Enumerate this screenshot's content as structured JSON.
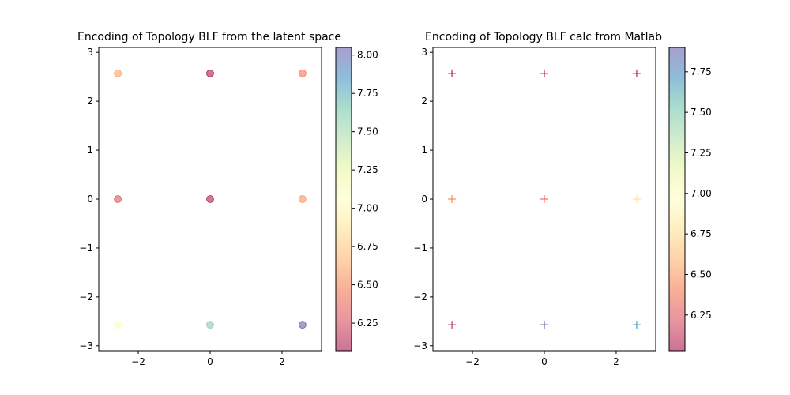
{
  "chart_data": [
    {
      "type": "scatter",
      "title": "Encoding of Topology BLF from the latent space",
      "xlabel": "",
      "ylabel": "",
      "marker": "circle",
      "xlim": [
        -3.1,
        3.1
      ],
      "ylim": [
        -3.1,
        3.1
      ],
      "xticks": [
        -2,
        0,
        2
      ],
      "xtick_labels": [
        "−2",
        "0",
        "2"
      ],
      "yticks": [
        -3,
        -2,
        -1,
        0,
        1,
        2,
        3
      ],
      "ytick_labels": [
        "−3",
        "−2",
        "−1",
        "0",
        "1",
        "2",
        "3"
      ],
      "grid": false,
      "colormap": "Spectral",
      "colorbar": {
        "range": [
          6.07,
          8.05
        ],
        "ticks": [
          6.25,
          6.5,
          6.75,
          7.0,
          7.25,
          7.5,
          7.75,
          8.0
        ],
        "tick_labels": [
          "6.25",
          "6.50",
          "6.75",
          "7.00",
          "7.25",
          "7.50",
          "7.75",
          "8.00"
        ]
      },
      "points": [
        {
          "x": -2.57,
          "y": 2.57,
          "value": 6.6
        },
        {
          "x": 0,
          "y": 2.57,
          "value": 6.07
        },
        {
          "x": 2.57,
          "y": 2.57,
          "value": 6.45
        },
        {
          "x": -2.57,
          "y": 0,
          "value": 6.3
        },
        {
          "x": 0,
          "y": 0,
          "value": 6.1
        },
        {
          "x": 2.57,
          "y": 0,
          "value": 6.55
        },
        {
          "x": -2.57,
          "y": -2.57,
          "value": 7.1
        },
        {
          "x": 0,
          "y": -2.57,
          "value": 7.6
        },
        {
          "x": 2.57,
          "y": -2.57,
          "value": 8.05
        }
      ]
    },
    {
      "type": "scatter",
      "title": "Encoding of Topology BLF calc from Matlab",
      "xlabel": "",
      "ylabel": "",
      "marker": "plus",
      "xlim": [
        -3.1,
        3.1
      ],
      "ylim": [
        -3.1,
        3.1
      ],
      "xticks": [
        -2,
        0,
        2
      ],
      "xtick_labels": [
        "−2",
        "0",
        "2"
      ],
      "yticks": [
        -3,
        -2,
        -1,
        0,
        1,
        2,
        3
      ],
      "ytick_labels": [
        "−3",
        "−2",
        "−1",
        "0",
        "1",
        "2",
        "3"
      ],
      "grid": false,
      "colormap": "Spectral",
      "colorbar": {
        "range": [
          6.03,
          7.9
        ],
        "ticks": [
          6.25,
          6.5,
          6.75,
          7.0,
          7.25,
          7.5,
          7.75
        ],
        "tick_labels": [
          "6.25",
          "6.50",
          "6.75",
          "7.00",
          "7.25",
          "7.50",
          "7.75"
        ]
      },
      "points": [
        {
          "x": -2.57,
          "y": 2.57,
          "value": 6.05
        },
        {
          "x": 0,
          "y": 2.57,
          "value": 6.05
        },
        {
          "x": 2.57,
          "y": 2.57,
          "value": 6.05
        },
        {
          "x": -2.57,
          "y": 0,
          "value": 6.45
        },
        {
          "x": 0,
          "y": 0,
          "value": 6.35
        },
        {
          "x": 2.57,
          "y": 0,
          "value": 6.8
        },
        {
          "x": -2.57,
          "y": -2.57,
          "value": 6.1
        },
        {
          "x": 0,
          "y": -2.57,
          "value": 7.9
        },
        {
          "x": 2.57,
          "y": -2.57,
          "value": 7.7
        }
      ]
    }
  ]
}
